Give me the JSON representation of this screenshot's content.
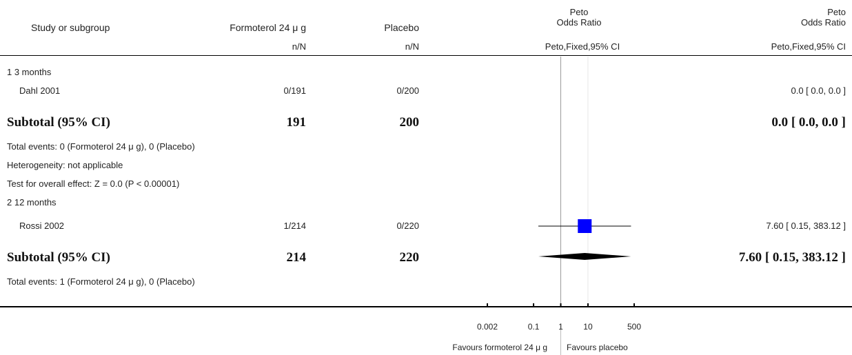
{
  "header": {
    "study": "Study or subgroup",
    "treatment": "Formoterol 24 μ g",
    "control": "Placebo",
    "or_title_1": "Peto",
    "or_title_2": "Odds Ratio",
    "or_method": "Peto,Fixed,95% CI",
    "or_title_1b": "Peto",
    "or_title_2b": "Odds Ratio",
    "or_method_b": "Peto,Fixed,95% CI",
    "nN_t": "n/N",
    "nN_c": "n/N"
  },
  "groups": [
    {
      "label": "1 3 months",
      "study_name": "Dahl 2001",
      "study_t": "0/191",
      "study_c": "0/200",
      "study_ci": "0.0 [ 0.0, 0.0 ]",
      "subtotal_label": "Subtotal (95% CI)",
      "subtotal_t": "191",
      "subtotal_c": "200",
      "subtotal_ci": "0.0 [ 0.0, 0.0 ]",
      "notes": [
        "Total events: 0 (Formoterol 24 μ g), 0 (Placebo)",
        "Heterogeneity: not applicable",
        "Test for overall effect: Z = 0.0 (P < 0.00001)"
      ]
    },
    {
      "label": "2 12 months",
      "study_name": "Rossi 2002",
      "study_t": "1/214",
      "study_c": "0/220",
      "study_ci": "7.60 [ 0.15, 383.12 ]",
      "subtotal_label": "Subtotal (95% CI)",
      "subtotal_t": "214",
      "subtotal_c": "220",
      "subtotal_ci": "7.60 [ 0.15, 383.12 ]",
      "notes": [
        "Total events: 1 (Formoterol 24 μ g), 0 (Placebo)"
      ]
    }
  ],
  "axis": {
    "ticks": [
      "0.002",
      "0.1",
      "1",
      "10",
      "500"
    ],
    "favours_left": "Favours formoterol 24 μ g",
    "favours_right": "Favours placebo"
  },
  "chart_data": {
    "type": "forest",
    "scale": "log",
    "xlim": [
      0.002,
      500
    ],
    "tick_values": [
      0.002,
      0.1,
      1,
      10,
      500
    ],
    "reference_line": 1,
    "studies": [
      {
        "name": "Rossi 2002",
        "or": 7.6,
        "ci": [
          0.15,
          383.12
        ],
        "marker_color": "#0000ff"
      }
    ],
    "subtotals": [
      {
        "name": "Subtotal (95% CI)",
        "or": 7.6,
        "ci": [
          0.15,
          383.12
        ]
      }
    ]
  }
}
